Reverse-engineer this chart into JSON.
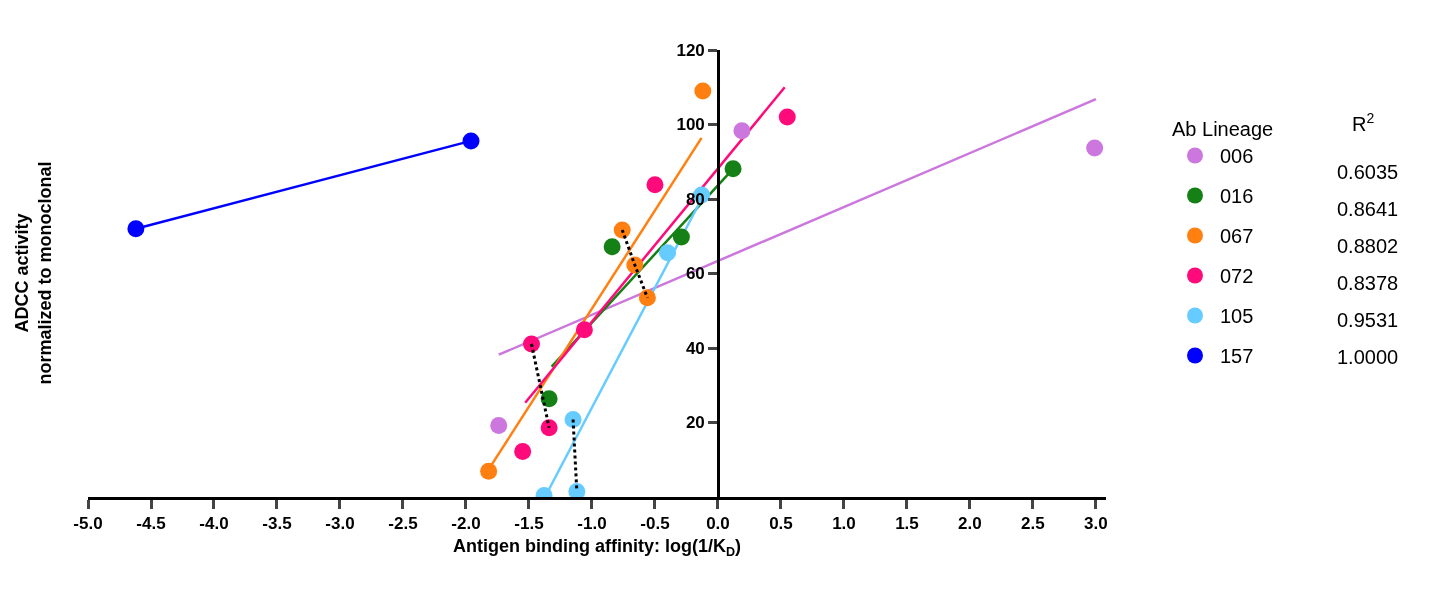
{
  "chart_data": {
    "type": "scatter",
    "xlabel": "Antigen binding affinity: log(1/K$_{D}$)",
    "ylabel": "ADCC activity\nnormalized to monoclonal",
    "legend_title": "Ab Lineage",
    "legend": "right",
    "marker": "circle",
    "xlim": [
      -5.0,
      3.08
    ],
    "xticks": [
      {
        "value": -5,
        "label": "-5.0"
      },
      {
        "value": -4.5,
        "label": "-4.5"
      },
      {
        "value": -4,
        "label": "-4.0"
      },
      {
        "value": -3.5,
        "label": "-3.5"
      },
      {
        "value": -3,
        "label": "-3.0"
      },
      {
        "value": -2.5,
        "label": "-2.5"
      },
      {
        "value": -2,
        "label": "-2.0"
      },
      {
        "value": -1.5,
        "label": "-1.5"
      },
      {
        "value": -1,
        "label": "-1.0"
      },
      {
        "value": -0.5,
        "label": "-0.5"
      },
      {
        "value": 0,
        "label": "0.0"
      },
      {
        "value": 0.5,
        "label": "0.5"
      },
      {
        "value": 1,
        "label": "1.0"
      },
      {
        "value": 1.5,
        "label": "1.5"
      },
      {
        "value": 2,
        "label": "2.0"
      },
      {
        "value": 2.5,
        "label": "2.5"
      },
      {
        "value": 3,
        "label": "3.0"
      }
    ],
    "ylim": [
      0,
      120
    ],
    "yticks": [
      20,
      40,
      60,
      80,
      100,
      120
    ],
    "annotations": [
      "R$^{2}$",
      "0.6035",
      "0.8641",
      "0.8802",
      "0.8378",
      "0.9531",
      "1.0000"
    ],
    "series": [
      {
        "type": "line",
        "marker": "none",
        "color": "#cc77dd",
        "x": [
          -1.74,
          3.0
        ],
        "values": [
          38.2,
          106.8
        ]
      },
      {
        "type": "line",
        "marker": "none",
        "color": "#158015",
        "x": [
          -1.32,
          0.12
        ],
        "values": [
          35.0,
          88.1
        ]
      },
      {
        "type": "line",
        "marker": "none",
        "color": "#ff8010",
        "x": [
          -1.82,
          -0.13
        ],
        "values": [
          7.4,
          96.4
        ]
      },
      {
        "type": "line",
        "marker": "none",
        "color": "#ff0a7a",
        "x": [
          -1.53,
          0.53
        ],
        "values": [
          25.3,
          110.0
        ]
      },
      {
        "type": "line",
        "marker": "none",
        "color": "#66ccff",
        "x": [
          -1.37,
          -0.13
        ],
        "values": [
          0.2,
          80.0
        ]
      },
      {
        "type": "line",
        "marker": "none",
        "color": "#0000ff",
        "x": [
          -4.62,
          -1.96
        ],
        "values": [
          72.0,
          95.6
        ]
      },
      {
        "name": "006",
        "color": "#cc77dd",
        "x": [
          -1.74,
          0.19,
          2.99
        ],
        "values": [
          19.2,
          98.3,
          93.7
        ]
      },
      {
        "name": "016",
        "color": "#158015",
        "x": [
          -1.34,
          -0.84,
          -0.29,
          0.12
        ],
        "values": [
          26.4,
          67.2,
          69.8,
          88.1
        ]
      },
      {
        "name": "067",
        "color": "#ff8010",
        "x": [
          -1.82,
          -0.76,
          -0.66,
          -0.56,
          -0.12
        ],
        "values": [
          6.9,
          71.7,
          62.3,
          53.5,
          109.0
        ]
      },
      {
        "name": "072",
        "color": "#ff0a7a",
        "x": [
          -1.55,
          -1.48,
          -1.34,
          -1.06,
          -0.5,
          0.55
        ],
        "values": [
          12.2,
          41.1,
          18.6,
          44.9,
          83.8,
          102.0
        ]
      },
      {
        "name": "105",
        "color": "#66ccff",
        "x": [
          -1.38,
          -1.15,
          -1.12,
          -0.4,
          -0.13
        ],
        "values": [
          0.4,
          20.8,
          1.5,
          65.6,
          81.1
        ]
      },
      {
        "name": "157",
        "color": "#0000ff",
        "x": [
          -4.62,
          -1.96
        ],
        "values": [
          72.0,
          95.6
        ]
      },
      {
        "type": "line",
        "marker": "none",
        "line_style": "dotted",
        "color": "#000000",
        "x": [
          -1.48,
          -1.34
        ],
        "values": [
          41.1,
          18.6
        ]
      },
      {
        "type": "line",
        "marker": "none",
        "line_style": "dotted",
        "color": "#000000",
        "x": [
          -0.76,
          -0.66,
          -0.56
        ],
        "values": [
          71.7,
          62.3,
          53.5
        ]
      },
      {
        "type": "line",
        "marker": "none",
        "line_style": "dotted",
        "color": "#000000",
        "x": [
          -1.15,
          -1.12
        ],
        "values": [
          20.8,
          1.5
        ]
      }
    ]
  }
}
